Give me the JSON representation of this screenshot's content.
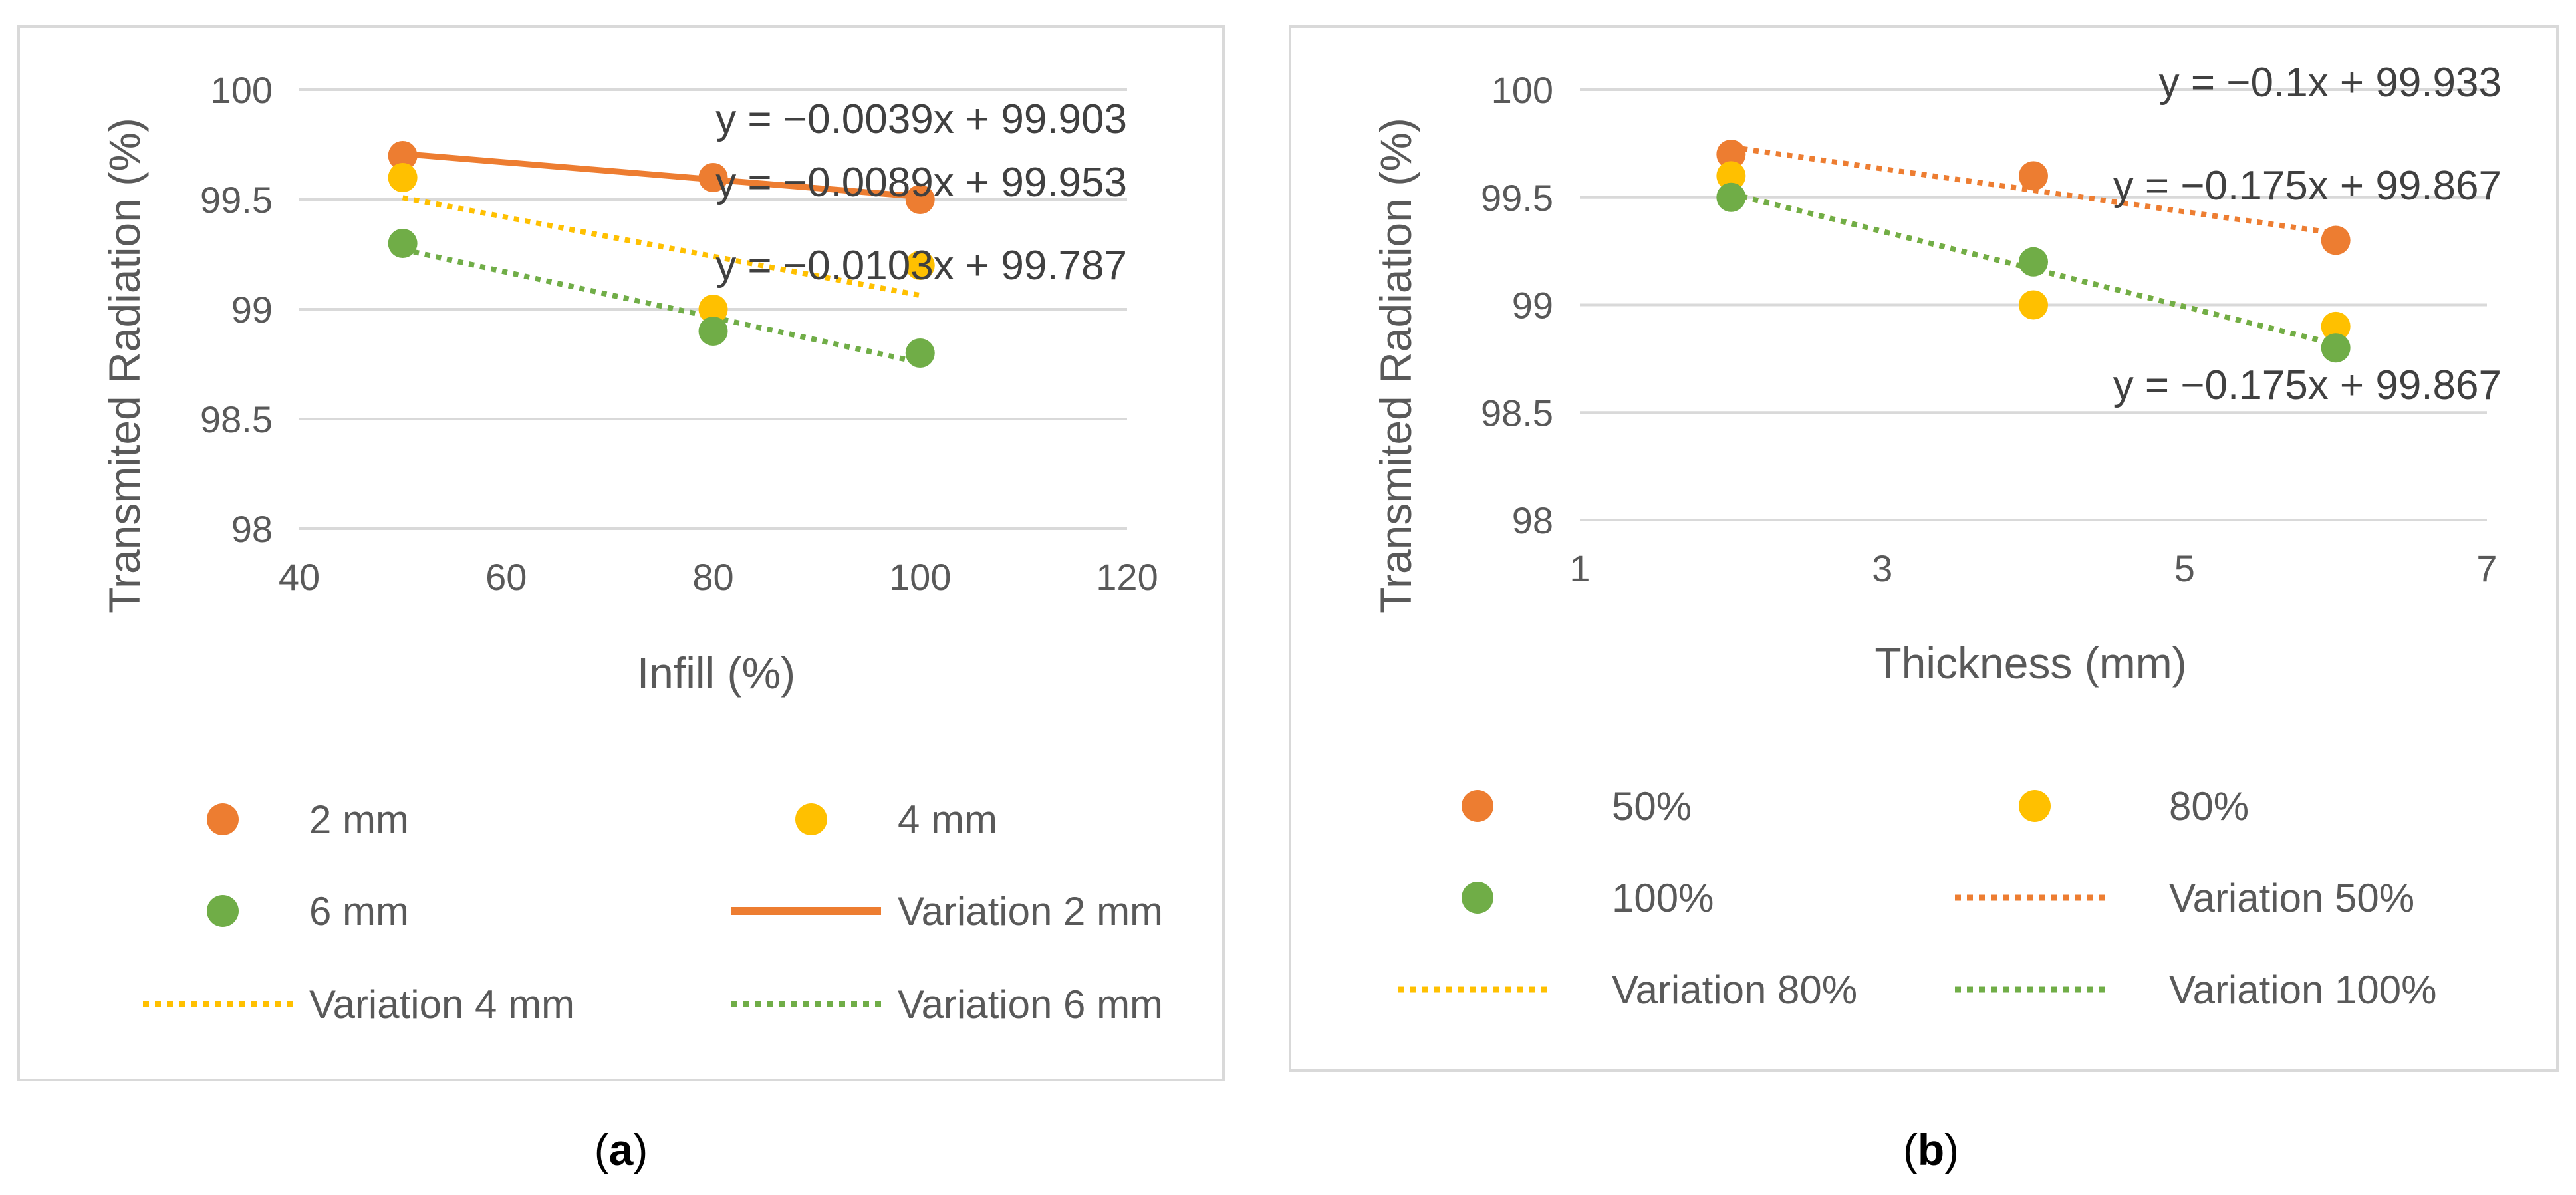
{
  "colors": {
    "orange": "#ED7D31",
    "yellow": "#FFC000",
    "green": "#70AD47",
    "grid": "#D9D9D9",
    "frame": "#D9D9D9",
    "text": "#595959"
  },
  "chart_data": [
    {
      "type": "scatter",
      "panel": "a",
      "caption": "a",
      "xlabel": "Infill (%)",
      "ylabel": "Transmited Radiation (%)",
      "xlim": [
        40,
        120
      ],
      "ylim": [
        98,
        100
      ],
      "xticks": [
        40,
        60,
        80,
        100,
        120
      ],
      "yticks": [
        98,
        98.5,
        99,
        99.5,
        100
      ],
      "xtick_labels": [
        "40",
        "60",
        "80",
        "100",
        "120"
      ],
      "ytick_labels": [
        "98",
        "98.5",
        "99",
        "99.5",
        "100"
      ],
      "grid": true,
      "series": [
        {
          "name": "2 mm",
          "color": "orange",
          "x": [
            50,
            80,
            100
          ],
          "y": [
            99.7,
            99.6,
            99.5
          ]
        },
        {
          "name": "4 mm",
          "color": "yellow",
          "x": [
            50,
            80,
            100
          ],
          "y": [
            99.6,
            99.0,
            99.2
          ]
        },
        {
          "name": "6 mm",
          "color": "green",
          "x": [
            50,
            80,
            100
          ],
          "y": [
            99.3,
            98.9,
            98.8
          ]
        }
      ],
      "trendlines": [
        {
          "name": "Variation 2 mm",
          "color": "orange",
          "style": "solid",
          "x_range": [
            50,
            100
          ],
          "slope": -0.0039,
          "intercept": 99.903,
          "equation": "y = −0.0039x + 99.903"
        },
        {
          "name": "Variation 4 mm",
          "color": "yellow",
          "style": "dotted",
          "x_range": [
            50,
            100
          ],
          "slope": -0.0089,
          "intercept": 99.953,
          "equation": "y = −0.0089x + 99.953"
        },
        {
          "name": "Variation 6 mm",
          "color": "green",
          "style": "dotted",
          "x_range": [
            50,
            100
          ],
          "slope": -0.0103,
          "intercept": 99.787,
          "equation": "y = −0.0103x + 99.787"
        }
      ],
      "legend": [
        {
          "label": "2 mm",
          "kind": "marker",
          "color": "orange"
        },
        {
          "label": "4 mm",
          "kind": "marker",
          "color": "yellow"
        },
        {
          "label": "6 mm",
          "kind": "marker",
          "color": "green"
        },
        {
          "label": "Variation 2 mm",
          "kind": "solid",
          "color": "orange"
        },
        {
          "label": "Variation 4 mm",
          "kind": "dotted",
          "color": "yellow"
        },
        {
          "label": "Variation 6 mm",
          "kind": "dotted",
          "color": "green"
        }
      ]
    },
    {
      "type": "scatter",
      "panel": "b",
      "caption": "b",
      "xlabel": "Thickness (mm)",
      "ylabel": "Transmited Radiation (%)",
      "xlim": [
        1,
        7
      ],
      "ylim": [
        98,
        100
      ],
      "xticks": [
        1,
        3,
        5,
        7
      ],
      "yticks": [
        98,
        98.5,
        99,
        99.5,
        100
      ],
      "xtick_labels": [
        "1",
        "3",
        "5",
        "7"
      ],
      "ytick_labels": [
        "98",
        "98.5",
        "99",
        "99.5",
        "100"
      ],
      "grid": true,
      "series": [
        {
          "name": "50%",
          "color": "orange",
          "x": [
            2,
            4,
            6
          ],
          "y": [
            99.7,
            99.6,
            99.3
          ]
        },
        {
          "name": "80%",
          "color": "yellow",
          "x": [
            2,
            4,
            6
          ],
          "y": [
            99.6,
            99.0,
            98.9
          ]
        },
        {
          "name": "100%",
          "color": "green",
          "x": [
            2,
            4,
            6
          ],
          "y": [
            99.5,
            99.2,
            98.8
          ]
        }
      ],
      "trendlines": [
        {
          "name": "Variation 50%",
          "color": "orange",
          "style": "dotted",
          "x_range": [
            2,
            6
          ],
          "slope": -0.1,
          "intercept": 99.933,
          "equation": "y = −0.1x + 99.933"
        },
        {
          "name": "Variation 80%",
          "color": "yellow",
          "style": "dotted",
          "x_range": [
            2,
            6
          ],
          "slope": -0.175,
          "intercept": 99.867,
          "equation": "y = −0.175x + 99.867"
        },
        {
          "name": "Variation 100%",
          "color": "green",
          "style": "dotted",
          "x_range": [
            2,
            6
          ],
          "slope": -0.175,
          "intercept": 99.867,
          "equation": "y = −0.175x + 99.867"
        }
      ],
      "legend": [
        {
          "label": "50%",
          "kind": "marker",
          "color": "orange"
        },
        {
          "label": "80%",
          "kind": "marker",
          "color": "yellow"
        },
        {
          "label": "100%",
          "kind": "marker",
          "color": "green"
        },
        {
          "label": "Variation 50%",
          "kind": "dotted",
          "color": "orange"
        },
        {
          "label": "Variation 80%",
          "kind": "dotted",
          "color": "yellow"
        },
        {
          "label": "Variation 100%",
          "kind": "dotted",
          "color": "green"
        }
      ]
    }
  ]
}
